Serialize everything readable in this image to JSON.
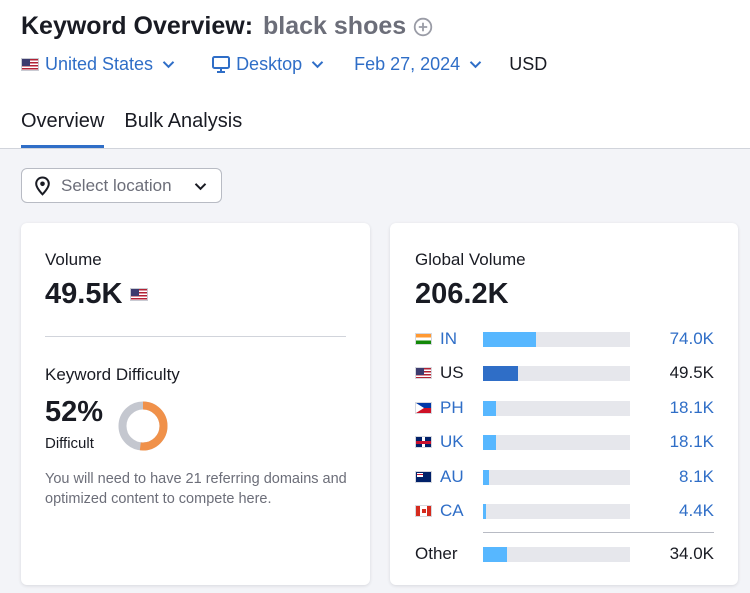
{
  "header": {
    "title": "Keyword Overview:",
    "keyword": "black shoes",
    "filters": {
      "country": "United States",
      "device": "Desktop",
      "date": "Feb 27, 2024",
      "currency": "USD"
    },
    "tabs": [
      {
        "label": "Overview",
        "active": true
      },
      {
        "label": "Bulk Analysis",
        "active": false
      }
    ]
  },
  "location_select": {
    "placeholder": "Select location"
  },
  "volume_card": {
    "volume_label": "Volume",
    "volume_value": "49.5K",
    "kd_label": "Keyword Difficulty",
    "kd_value": "52%",
    "kd_level": "Difficult",
    "kd_percent": 52,
    "kd_description": "You will need to have 21 referring domains and optimized content to compete here."
  },
  "global_card": {
    "label": "Global Volume",
    "value": "206.2K",
    "countries": [
      {
        "code": "IN",
        "flag": "flag-in-icon",
        "value": "74.0K",
        "share": 0.36,
        "is_link": true
      },
      {
        "code": "US",
        "flag": "flag-us-icon",
        "value": "49.5K",
        "share": 0.24,
        "is_link": false,
        "highlight": true
      },
      {
        "code": "PH",
        "flag": "flag-ph-icon",
        "value": "18.1K",
        "share": 0.088,
        "is_link": true
      },
      {
        "code": "UK",
        "flag": "flag-uk-icon",
        "value": "18.1K",
        "share": 0.088,
        "is_link": true
      },
      {
        "code": "AU",
        "flag": "flag-au-icon",
        "value": "8.1K",
        "share": 0.039,
        "is_link": true
      },
      {
        "code": "CA",
        "flag": "flag-ca-icon",
        "value": "4.4K",
        "share": 0.021,
        "is_link": true
      }
    ],
    "other": {
      "label": "Other",
      "value": "34.0K",
      "share": 0.165
    }
  },
  "colors": {
    "accent": "#2f6ec7",
    "bar_light": "#57b7ff",
    "bar_dark": "#2f6ec7",
    "kd_orange": "#f0914a",
    "kd_gray": "#c4c7cf"
  }
}
